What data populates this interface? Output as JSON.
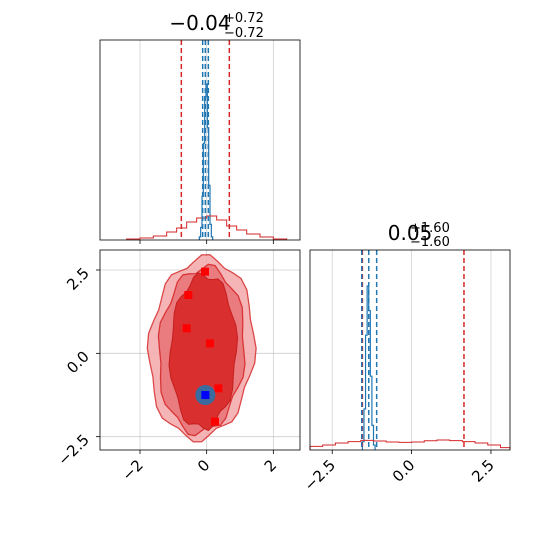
{
  "chart_data": {
    "type": "corner",
    "parameters": [
      "",
      ""
    ],
    "panels": {
      "hist_x": {
        "title_value": "−0.04",
        "title_plus": "+0.72",
        "title_minus": "−0.72",
        "xlim": [
          -3.2,
          2.8
        ],
        "narrow_quantiles": [
          -0.12,
          -0.04,
          0.05
        ],
        "wide_quantiles": [
          -0.76,
          -0.04,
          0.68
        ],
        "narrow_hist": {
          "edges": [
            -0.22,
            -0.18,
            -0.14,
            -0.1,
            -0.06,
            -0.02,
            0.02,
            0.06,
            0.1,
            0.14,
            0.18
          ],
          "counts": [
            0.02,
            0.08,
            0.28,
            0.62,
            0.92,
            1.0,
            0.72,
            0.35,
            0.1,
            0.02
          ]
        },
        "wide_hist": {
          "edges": [
            -2.4,
            -2.0,
            -1.6,
            -1.2,
            -0.9,
            -0.6,
            -0.3,
            0.0,
            0.3,
            0.6,
            0.9,
            1.2,
            1.6,
            2.0,
            2.4
          ],
          "counts": [
            0.005,
            0.01,
            0.02,
            0.04,
            0.06,
            0.09,
            0.11,
            0.12,
            0.1,
            0.07,
            0.05,
            0.03,
            0.015,
            0.005
          ]
        },
        "xticks": [
          -2,
          0,
          2
        ]
      },
      "scatter_2d": {
        "xlim": [
          -3.2,
          2.8
        ],
        "ylim": [
          -2.9,
          3.1
        ],
        "xticks": [
          -2,
          0,
          2
        ],
        "yticks": [
          -2.5,
          0.0,
          2.5
        ],
        "xtick_labels": [
          "−2",
          "0",
          "2"
        ],
        "ytick_labels": [
          "−2.5",
          "0.0",
          "2.5"
        ],
        "wide_samples": [
          {
            "x": -0.05,
            "y": 2.45
          },
          {
            "x": -0.55,
            "y": 1.75
          },
          {
            "x": -0.6,
            "y": 0.75
          },
          {
            "x": 0.1,
            "y": 0.3
          },
          {
            "x": 0.35,
            "y": -1.05
          },
          {
            "x": 0.25,
            "y": -2.05
          },
          {
            "x": 0.0,
            "y": -1.3
          }
        ],
        "narrow_center": {
          "x": -0.04,
          "y": -1.25
        }
      },
      "hist_y": {
        "title_value": "0.05",
        "title_plus": "+1.60",
        "title_minus": "−1.60",
        "xlim": [
          -3.2,
          3.1
        ],
        "narrow_quantiles": [
          -1.57,
          -1.35,
          -1.1
        ],
        "wide_quantiles": [
          -1.55,
          0.05,
          1.65
        ],
        "narrow_hist": {
          "edges": [
            -1.55,
            -1.5,
            -1.45,
            -1.4,
            -1.35,
            -1.3,
            -1.25,
            -1.2,
            -1.15
          ],
          "counts": [
            0.05,
            0.25,
            0.7,
            1.0,
            0.85,
            0.45,
            0.15,
            0.03
          ]
        },
        "wide_hist": {
          "edges": [
            -3.2,
            -2.8,
            -2.4,
            -2.0,
            -1.6,
            -1.2,
            -0.8,
            -0.4,
            0.0,
            0.4,
            0.8,
            1.2,
            1.6,
            2.0,
            2.4,
            2.8,
            3.1
          ],
          "counts": [
            0.018,
            0.025,
            0.035,
            0.042,
            0.048,
            0.045,
            0.04,
            0.038,
            0.04,
            0.046,
            0.05,
            0.047,
            0.042,
            0.035,
            0.025,
            0.012
          ]
        },
        "xticks": [
          -2.5,
          0.0,
          2.5
        ],
        "xtick_labels": [
          "−2.5",
          "0.0",
          "2.5"
        ]
      }
    },
    "colors": {
      "wide": "#d62728",
      "narrow": "#1f77b4",
      "marker": "#ff0000",
      "center_marker": "#0000ff",
      "grid": "#b0b0b0"
    }
  }
}
